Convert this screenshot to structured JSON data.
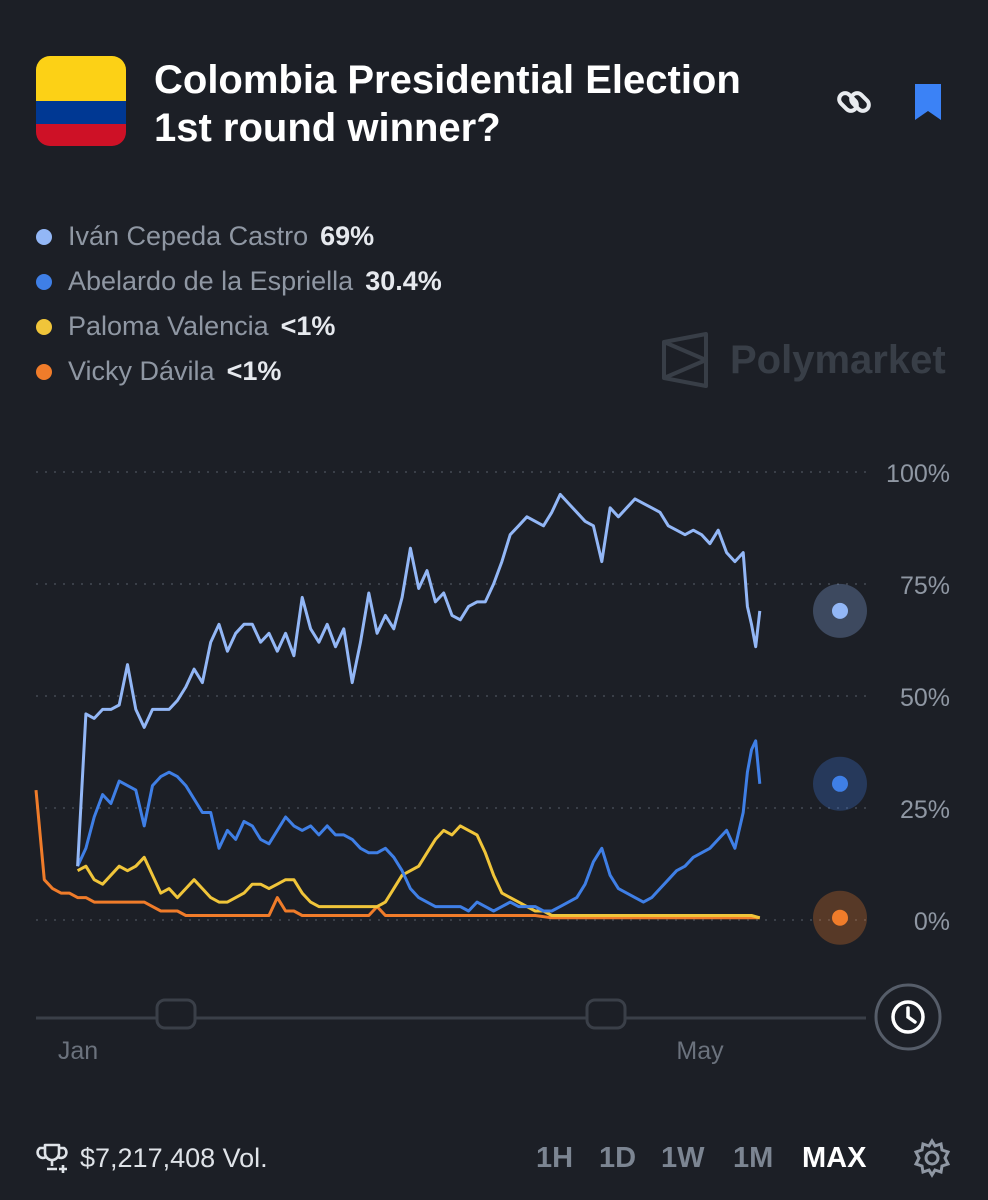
{
  "market": {
    "title": "Colombia Presidential Election 1st round winner?",
    "flag_colors": [
      "#fcd116",
      "#003893",
      "#ce1126"
    ]
  },
  "header_icons": [
    "link-icon",
    "bookmark-icon"
  ],
  "accent_color": "#3b82f6",
  "legend": [
    {
      "name": "Iván Cepeda Castro",
      "value": "69%",
      "color": "#93b7f6"
    },
    {
      "name": "Abelardo de la Espriella",
      "value": "30.4%",
      "color": "#3f7fe6"
    },
    {
      "name": "Paloma Valencia",
      "value": "<1%",
      "color": "#f0c53a"
    },
    {
      "name": "Vicky Dávila",
      "value": "<1%",
      "color": "#f07c2a"
    }
  ],
  "watermark": "Polymarket",
  "chart_data": {
    "type": "line",
    "x_labels": [
      "Jan",
      "May"
    ],
    "y_ticks": [
      "0%",
      "25%",
      "50%",
      "75%",
      "100%"
    ],
    "ylim": [
      0,
      100
    ],
    "grid": true,
    "series": [
      {
        "name": "Iván Cepeda Castro",
        "color": "#93b7f6",
        "end_value": 69,
        "points": [
          [
            0.05,
            12
          ],
          [
            0.06,
            46
          ],
          [
            0.07,
            45
          ],
          [
            0.08,
            47
          ],
          [
            0.09,
            47
          ],
          [
            0.1,
            48
          ],
          [
            0.11,
            57
          ],
          [
            0.12,
            47
          ],
          [
            0.13,
            43
          ],
          [
            0.14,
            47
          ],
          [
            0.16,
            47
          ],
          [
            0.17,
            49
          ],
          [
            0.18,
            52
          ],
          [
            0.19,
            56
          ],
          [
            0.2,
            53
          ],
          [
            0.21,
            62
          ],
          [
            0.22,
            66
          ],
          [
            0.23,
            60
          ],
          [
            0.24,
            64
          ],
          [
            0.25,
            66
          ],
          [
            0.26,
            66
          ],
          [
            0.27,
            62
          ],
          [
            0.28,
            64
          ],
          [
            0.29,
            60
          ],
          [
            0.3,
            64
          ],
          [
            0.31,
            59
          ],
          [
            0.32,
            72
          ],
          [
            0.33,
            65
          ],
          [
            0.34,
            62
          ],
          [
            0.35,
            66
          ],
          [
            0.36,
            61
          ],
          [
            0.37,
            65
          ],
          [
            0.38,
            53
          ],
          [
            0.39,
            62
          ],
          [
            0.4,
            73
          ],
          [
            0.41,
            64
          ],
          [
            0.42,
            68
          ],
          [
            0.43,
            65
          ],
          [
            0.44,
            72
          ],
          [
            0.45,
            83
          ],
          [
            0.46,
            74
          ],
          [
            0.47,
            78
          ],
          [
            0.48,
            71
          ],
          [
            0.49,
            73
          ],
          [
            0.5,
            68
          ],
          [
            0.51,
            67
          ],
          [
            0.52,
            70
          ],
          [
            0.53,
            71
          ],
          [
            0.54,
            71
          ],
          [
            0.55,
            75
          ],
          [
            0.56,
            80
          ],
          [
            0.57,
            86
          ],
          [
            0.58,
            88
          ],
          [
            0.59,
            90
          ],
          [
            0.6,
            89
          ],
          [
            0.61,
            88
          ],
          [
            0.62,
            91
          ],
          [
            0.63,
            95
          ],
          [
            0.64,
            93
          ],
          [
            0.65,
            91
          ],
          [
            0.66,
            89
          ],
          [
            0.67,
            88
          ],
          [
            0.68,
            80
          ],
          [
            0.69,
            92
          ],
          [
            0.7,
            90
          ],
          [
            0.71,
            92
          ],
          [
            0.72,
            94
          ],
          [
            0.73,
            93
          ],
          [
            0.74,
            92
          ],
          [
            0.75,
            91
          ],
          [
            0.76,
            88
          ],
          [
            0.77,
            87
          ],
          [
            0.78,
            86
          ],
          [
            0.79,
            87
          ],
          [
            0.8,
            86
          ],
          [
            0.81,
            84
          ],
          [
            0.82,
            87
          ],
          [
            0.83,
            82
          ],
          [
            0.84,
            80
          ],
          [
            0.85,
            82
          ],
          [
            0.855,
            70
          ],
          [
            0.86,
            66
          ],
          [
            0.865,
            61
          ],
          [
            0.87,
            69
          ]
        ]
      },
      {
        "name": "Abelardo de la Espriella",
        "color": "#3f7fe6",
        "end_value": 30.4,
        "points": [
          [
            0.05,
            12
          ],
          [
            0.06,
            16
          ],
          [
            0.07,
            23
          ],
          [
            0.08,
            28
          ],
          [
            0.09,
            26
          ],
          [
            0.1,
            31
          ],
          [
            0.11,
            30
          ],
          [
            0.12,
            29
          ],
          [
            0.13,
            21
          ],
          [
            0.14,
            30
          ],
          [
            0.15,
            32
          ],
          [
            0.16,
            33
          ],
          [
            0.17,
            32
          ],
          [
            0.18,
            30
          ],
          [
            0.19,
            27
          ],
          [
            0.2,
            24
          ],
          [
            0.21,
            24
          ],
          [
            0.22,
            16
          ],
          [
            0.23,
            20
          ],
          [
            0.24,
            18
          ],
          [
            0.25,
            22
          ],
          [
            0.26,
            21
          ],
          [
            0.27,
            18
          ],
          [
            0.28,
            17
          ],
          [
            0.29,
            20
          ],
          [
            0.3,
            23
          ],
          [
            0.31,
            21
          ],
          [
            0.32,
            20
          ],
          [
            0.33,
            21
          ],
          [
            0.34,
            19
          ],
          [
            0.35,
            21
          ],
          [
            0.36,
            19
          ],
          [
            0.37,
            19
          ],
          [
            0.38,
            18
          ],
          [
            0.39,
            16
          ],
          [
            0.4,
            15
          ],
          [
            0.41,
            15
          ],
          [
            0.42,
            16
          ],
          [
            0.43,
            14
          ],
          [
            0.44,
            11
          ],
          [
            0.45,
            7
          ],
          [
            0.46,
            5
          ],
          [
            0.47,
            4
          ],
          [
            0.48,
            3
          ],
          [
            0.49,
            3
          ],
          [
            0.5,
            3
          ],
          [
            0.51,
            3
          ],
          [
            0.52,
            2
          ],
          [
            0.53,
            4
          ],
          [
            0.54,
            3
          ],
          [
            0.55,
            2
          ],
          [
            0.56,
            3
          ],
          [
            0.57,
            4
          ],
          [
            0.58,
            3
          ],
          [
            0.59,
            3
          ],
          [
            0.6,
            3
          ],
          [
            0.61,
            2
          ],
          [
            0.62,
            2
          ],
          [
            0.63,
            3
          ],
          [
            0.64,
            4
          ],
          [
            0.65,
            5
          ],
          [
            0.66,
            8
          ],
          [
            0.67,
            13
          ],
          [
            0.68,
            16
          ],
          [
            0.69,
            10
          ],
          [
            0.7,
            7
          ],
          [
            0.71,
            6
          ],
          [
            0.72,
            5
          ],
          [
            0.73,
            4
          ],
          [
            0.74,
            5
          ],
          [
            0.75,
            7
          ],
          [
            0.76,
            9
          ],
          [
            0.77,
            11
          ],
          [
            0.78,
            12
          ],
          [
            0.79,
            14
          ],
          [
            0.8,
            15
          ],
          [
            0.81,
            16
          ],
          [
            0.82,
            18
          ],
          [
            0.83,
            20
          ],
          [
            0.84,
            16
          ],
          [
            0.85,
            24
          ],
          [
            0.855,
            33
          ],
          [
            0.86,
            38
          ],
          [
            0.865,
            40
          ],
          [
            0.87,
            30.4
          ]
        ]
      },
      {
        "name": "Paloma Valencia",
        "color": "#f0c53a",
        "end_value": 0.5,
        "points": [
          [
            0.05,
            11
          ],
          [
            0.06,
            12
          ],
          [
            0.07,
            9
          ],
          [
            0.08,
            8
          ],
          [
            0.09,
            10
          ],
          [
            0.1,
            12
          ],
          [
            0.11,
            11
          ],
          [
            0.12,
            12
          ],
          [
            0.13,
            14
          ],
          [
            0.14,
            10
          ],
          [
            0.15,
            6
          ],
          [
            0.16,
            7
          ],
          [
            0.17,
            5
          ],
          [
            0.18,
            7
          ],
          [
            0.19,
            9
          ],
          [
            0.2,
            7
          ],
          [
            0.21,
            5
          ],
          [
            0.22,
            4
          ],
          [
            0.23,
            4
          ],
          [
            0.24,
            5
          ],
          [
            0.25,
            6
          ],
          [
            0.26,
            8
          ],
          [
            0.27,
            8
          ],
          [
            0.28,
            7
          ],
          [
            0.29,
            8
          ],
          [
            0.3,
            9
          ],
          [
            0.31,
            9
          ],
          [
            0.32,
            6
          ],
          [
            0.33,
            4
          ],
          [
            0.34,
            3
          ],
          [
            0.35,
            3
          ],
          [
            0.36,
            3
          ],
          [
            0.37,
            3
          ],
          [
            0.38,
            3
          ],
          [
            0.39,
            3
          ],
          [
            0.4,
            3
          ],
          [
            0.41,
            3
          ],
          [
            0.42,
            4
          ],
          [
            0.43,
            7
          ],
          [
            0.44,
            10
          ],
          [
            0.45,
            11
          ],
          [
            0.46,
            12
          ],
          [
            0.47,
            15
          ],
          [
            0.48,
            18
          ],
          [
            0.49,
            20
          ],
          [
            0.5,
            19
          ],
          [
            0.51,
            21
          ],
          [
            0.52,
            20
          ],
          [
            0.53,
            19
          ],
          [
            0.54,
            15
          ],
          [
            0.55,
            10
          ],
          [
            0.56,
            6
          ],
          [
            0.57,
            5
          ],
          [
            0.58,
            4
          ],
          [
            0.59,
            3
          ],
          [
            0.6,
            2
          ],
          [
            0.61,
            2
          ],
          [
            0.62,
            1
          ],
          [
            0.63,
            1
          ],
          [
            0.64,
            1
          ],
          [
            0.65,
            1
          ],
          [
            0.66,
            1
          ],
          [
            0.67,
            1
          ],
          [
            0.68,
            1
          ],
          [
            0.69,
            1
          ],
          [
            0.7,
            1
          ],
          [
            0.72,
            1
          ],
          [
            0.74,
            1
          ],
          [
            0.76,
            1
          ],
          [
            0.78,
            1
          ],
          [
            0.8,
            1
          ],
          [
            0.82,
            1
          ],
          [
            0.84,
            1
          ],
          [
            0.86,
            1
          ],
          [
            0.87,
            0.5
          ]
        ]
      },
      {
        "name": "Vicky Dávila",
        "color": "#f07c2a",
        "end_value": 0.5,
        "points": [
          [
            0.0,
            29
          ],
          [
            0.01,
            9
          ],
          [
            0.02,
            7
          ],
          [
            0.03,
            6
          ],
          [
            0.04,
            6
          ],
          [
            0.05,
            5
          ],
          [
            0.06,
            5
          ],
          [
            0.07,
            4
          ],
          [
            0.08,
            4
          ],
          [
            0.09,
            4
          ],
          [
            0.1,
            4
          ],
          [
            0.11,
            4
          ],
          [
            0.12,
            4
          ],
          [
            0.13,
            4
          ],
          [
            0.14,
            3
          ],
          [
            0.15,
            2
          ],
          [
            0.16,
            2
          ],
          [
            0.17,
            2
          ],
          [
            0.18,
            1
          ],
          [
            0.19,
            1
          ],
          [
            0.2,
            1
          ],
          [
            0.22,
            1
          ],
          [
            0.24,
            1
          ],
          [
            0.26,
            1
          ],
          [
            0.28,
            1
          ],
          [
            0.29,
            5
          ],
          [
            0.3,
            2
          ],
          [
            0.31,
            2
          ],
          [
            0.32,
            1
          ],
          [
            0.34,
            1
          ],
          [
            0.36,
            1
          ],
          [
            0.38,
            1
          ],
          [
            0.4,
            1
          ],
          [
            0.41,
            3
          ],
          [
            0.42,
            1
          ],
          [
            0.44,
            1
          ],
          [
            0.46,
            1
          ],
          [
            0.48,
            1
          ],
          [
            0.5,
            1
          ],
          [
            0.52,
            1
          ],
          [
            0.54,
            1
          ],
          [
            0.56,
            1
          ],
          [
            0.58,
            1
          ],
          [
            0.6,
            1
          ],
          [
            0.62,
            0.5
          ],
          [
            0.64,
            0.5
          ],
          [
            0.66,
            0.5
          ],
          [
            0.68,
            0.5
          ],
          [
            0.7,
            0.5
          ],
          [
            0.72,
            0.5
          ],
          [
            0.74,
            0.5
          ],
          [
            0.76,
            0.5
          ],
          [
            0.78,
            0.5
          ],
          [
            0.8,
            0.5
          ],
          [
            0.82,
            0.5
          ],
          [
            0.84,
            0.5
          ],
          [
            0.86,
            0.5
          ],
          [
            0.87,
            0.5
          ]
        ]
      }
    ]
  },
  "footer": {
    "volume": "$7,217,408 Vol.",
    "ranges": [
      "1H",
      "1D",
      "1W",
      "1M",
      "MAX"
    ],
    "active_range": "MAX"
  }
}
